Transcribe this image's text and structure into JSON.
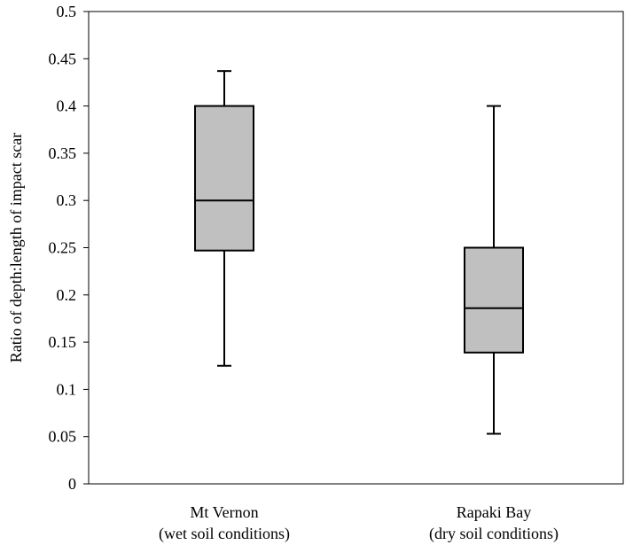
{
  "chart_data": {
    "type": "box",
    "title": "",
    "xlabel": "",
    "ylabel": "Ratio of depth:length of impact scar",
    "ylim": [
      0,
      0.5
    ],
    "yticks": [
      0,
      0.05,
      0.1,
      0.15,
      0.2,
      0.25,
      0.3,
      0.35,
      0.4,
      0.45,
      0.5
    ],
    "ytick_labels": [
      "0",
      "0.05",
      "0.1",
      "0.15",
      "0.2",
      "0.25",
      "0.3",
      "0.35",
      "0.4",
      "0.45",
      "0.5"
    ],
    "grid": false,
    "legend": "none",
    "box_color": "#c0c0c0",
    "categories": [
      {
        "line1": "Mt Vernon",
        "line2": "(wet soil conditions)"
      },
      {
        "line1": "Rapaki Bay",
        "line2": "(dry soil conditions)"
      }
    ],
    "boxes": [
      {
        "min": 0.125,
        "q1": 0.247,
        "median": 0.3,
        "q3": 0.4,
        "max": 0.437
      },
      {
        "min": 0.053,
        "q1": 0.139,
        "median": 0.186,
        "q3": 0.25,
        "max": 0.4
      }
    ]
  }
}
